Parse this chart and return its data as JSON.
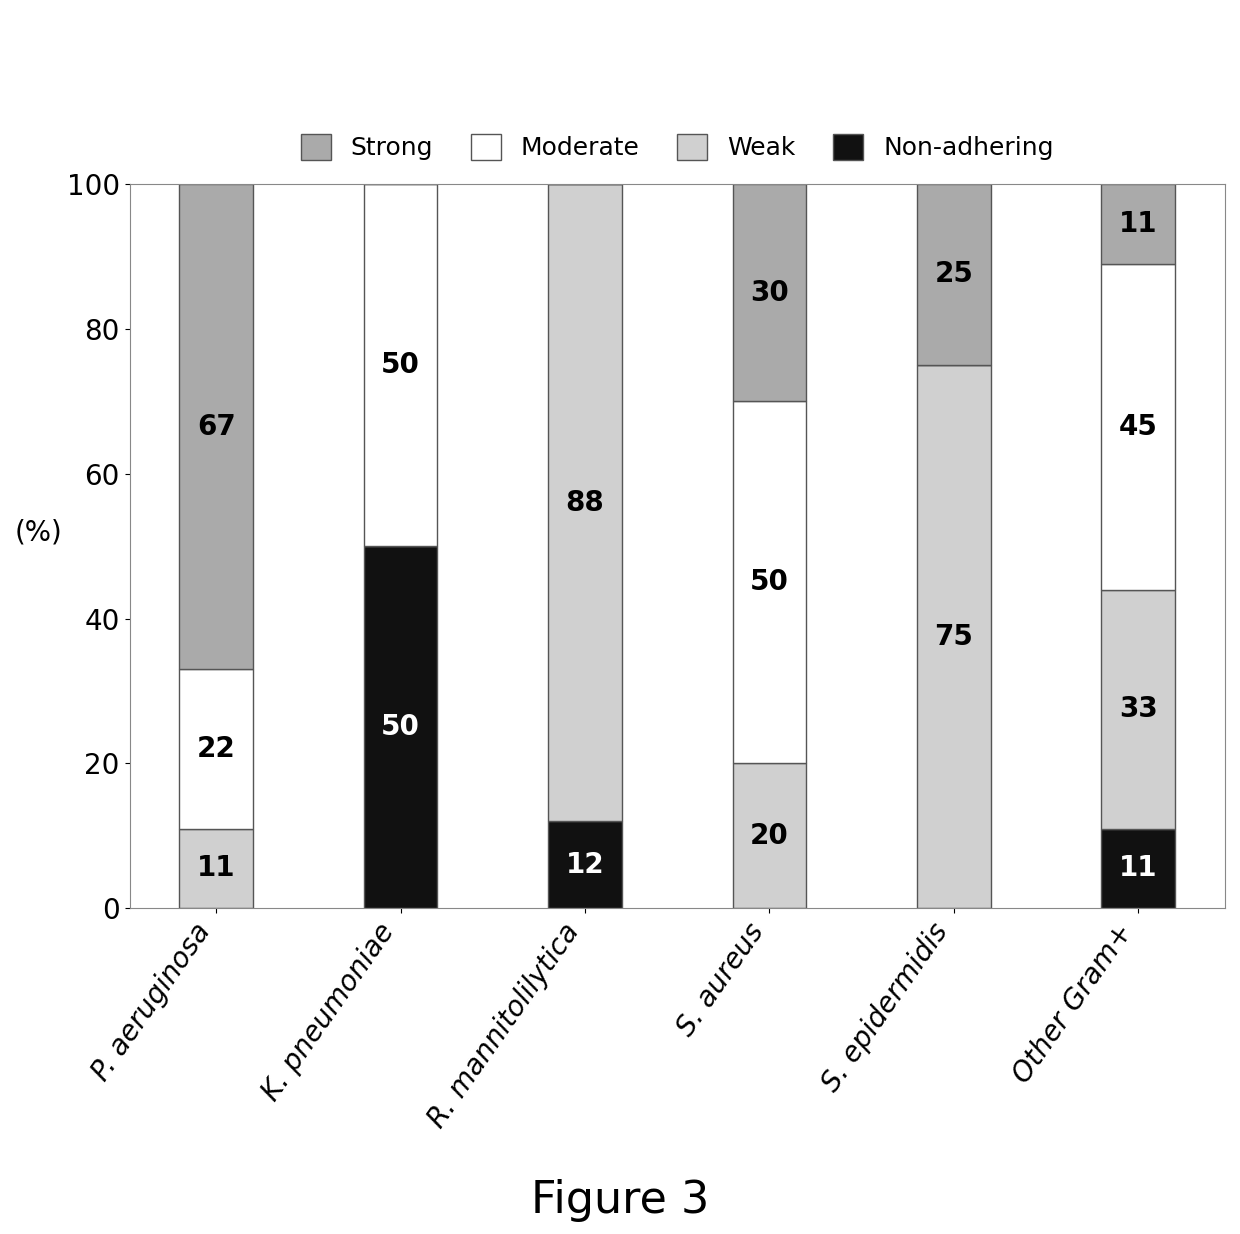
{
  "categories": [
    "P. aeruginosa",
    "K. pneumoniae",
    "R. mannitolilytica",
    "S. aureus",
    "S. epidermidis",
    "Other Gram+"
  ],
  "series": {
    "Weak": [
      11,
      0,
      88,
      20,
      75,
      33
    ],
    "Moderate": [
      22,
      50,
      0,
      50,
      0,
      45
    ],
    "Strong": [
      67,
      0,
      0,
      30,
      25,
      11
    ],
    "Non-adhering": [
      0,
      50,
      12,
      0,
      0,
      11
    ]
  },
  "colors": {
    "Strong": "#aaaaaa",
    "Moderate": "#ffffff",
    "Weak": "#d0d0d0",
    "Non-adhering": "#111111"
  },
  "legend_order": [
    "Strong",
    "Moderate",
    "Weak",
    "Non-adhering"
  ],
  "stack_order": [
    "Non-adhering",
    "Weak",
    "Moderate",
    "Strong"
  ],
  "ylabel": "(%)",
  "ylim": [
    0,
    100
  ],
  "yticks": [
    0,
    20,
    40,
    60,
    80,
    100
  ],
  "figure_caption": "Figure 3",
  "bar_edge_color": "#555555",
  "bar_width": 0.4,
  "label_fontsize": 20,
  "tick_fontsize": 20,
  "legend_fontsize": 18,
  "caption_fontsize": 32,
  "annotation_fontsize": 20,
  "background_color": "#ffffff"
}
